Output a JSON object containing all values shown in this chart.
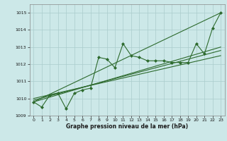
{
  "title": "Graphe pression niveau de la mer (hPa)",
  "bg_color": "#cce8e8",
  "grid_color": "#aacccc",
  "line_color": "#2d6a2d",
  "xlim": [
    -0.5,
    23.5
  ],
  "ylim": [
    1009.0,
    1015.5
  ],
  "yticks": [
    1009,
    1010,
    1011,
    1012,
    1013,
    1014,
    1015
  ],
  "xticks": [
    0,
    1,
    2,
    3,
    4,
    5,
    6,
    7,
    8,
    9,
    10,
    11,
    12,
    13,
    14,
    15,
    16,
    17,
    18,
    19,
    20,
    21,
    22,
    23
  ],
  "main_series": [
    1009.8,
    1009.5,
    1010.2,
    1010.3,
    1009.4,
    1010.3,
    1010.5,
    1010.6,
    1012.4,
    1012.3,
    1011.8,
    1013.2,
    1012.5,
    1012.4,
    1012.2,
    1012.2,
    1012.2,
    1012.1,
    1012.1,
    1012.1,
    1013.2,
    1012.6,
    1014.1,
    1015.0
  ],
  "trend_lines": [
    [
      1009.8,
      1015.0
    ],
    [
      1009.8,
      1013.0
    ],
    [
      1009.9,
      1012.8
    ],
    [
      1010.0,
      1012.5
    ]
  ],
  "trend_x": [
    0,
    23
  ]
}
